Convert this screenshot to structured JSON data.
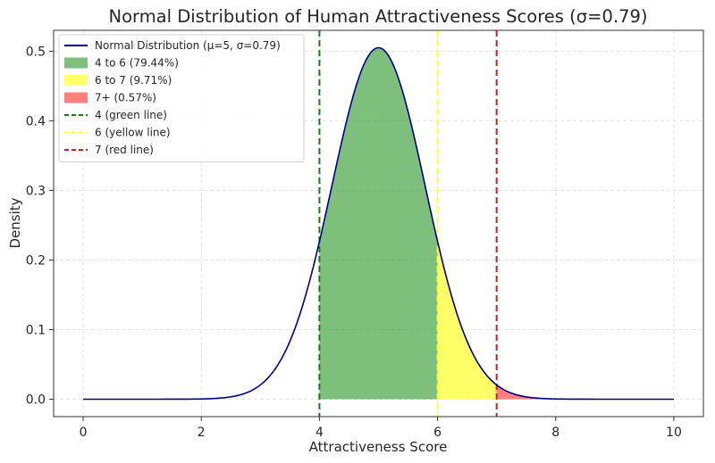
{
  "chart_data": {
    "type": "area",
    "title": "Normal Distribution of Human Attractiveness Scores (σ=0.79)",
    "xlabel": "Attractiveness Score",
    "ylabel": "Density",
    "xlim": [
      -0.5,
      10.5
    ],
    "ylim": [
      -0.025,
      0.53
    ],
    "xticks": [
      0,
      2,
      4,
      6,
      8,
      10
    ],
    "yticks": [
      0.0,
      0.1,
      0.2,
      0.3,
      0.4,
      0.5
    ],
    "xtick_labels": [
      "0",
      "2",
      "4",
      "6",
      "8",
      "10"
    ],
    "ytick_labels": [
      "0.0",
      "0.1",
      "0.2",
      "0.3",
      "0.4",
      "0.5"
    ],
    "grid": true,
    "legend_position": "top-left",
    "curve": {
      "name": "Normal Distribution (μ=5, σ=0.79)",
      "color": "#00008b",
      "x": [
        0,
        2,
        2.5,
        3,
        3.25,
        3.5,
        3.75,
        4,
        4.25,
        4.5,
        4.75,
        5,
        5.25,
        5.5,
        5.75,
        6,
        6.25,
        6.5,
        6.75,
        7,
        7.5,
        8,
        10
      ],
      "y": [
        0.0,
        0.0002,
        0.0034,
        0.0206,
        0.0474,
        0.0931,
        0.1583,
        0.2266,
        0.3221,
        0.4065,
        0.4832,
        0.505,
        0.4832,
        0.4065,
        0.3221,
        0.2266,
        0.1583,
        0.0931,
        0.0474,
        0.0206,
        0.0034,
        0.0004,
        0.0
      ]
    },
    "fills": [
      {
        "name": "4 to 6 (79.44%)",
        "from": 4,
        "to": 6,
        "color": "#4ca64c",
        "opacity": 0.72
      },
      {
        "name": "6 to 7 (9.71%)",
        "from": 6,
        "to": 7,
        "color": "#ffff4d",
        "opacity": 0.85
      },
      {
        "name": "7+ (0.57%)",
        "from": 7,
        "to": 8,
        "color": "#ff4d4d",
        "opacity": 0.72
      }
    ],
    "vlines": [
      {
        "name": "4 (green line)",
        "x": 4,
        "color": "#1a7a1a"
      },
      {
        "name": "6 (yellow line)",
        "x": 6,
        "color": "#ffff33"
      },
      {
        "name": "7 (red line)",
        "x": 7,
        "color": "#cc1f1f"
      }
    ]
  }
}
